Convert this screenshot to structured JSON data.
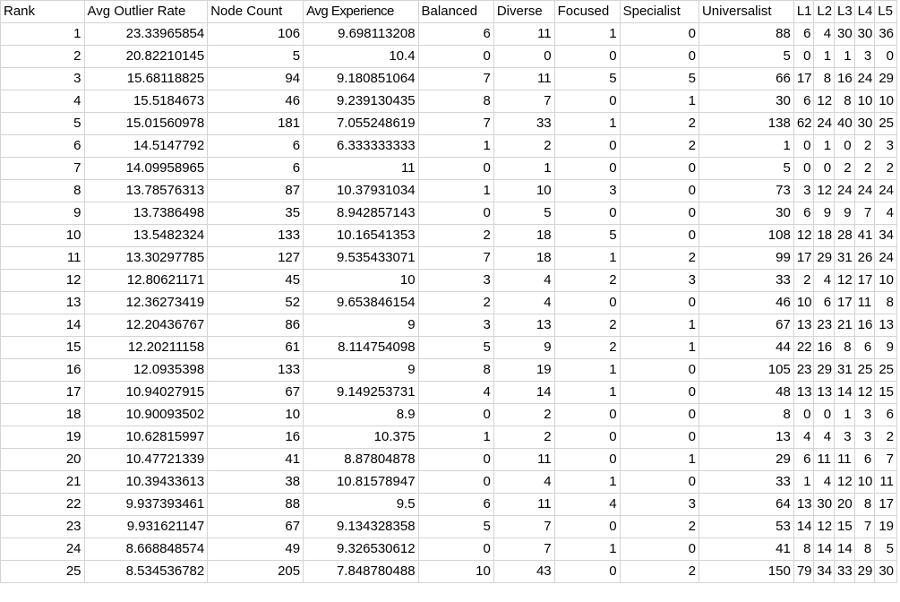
{
  "sheet": {
    "headers": [
      "Rank",
      "Avg Outlier Rate",
      "Node Count",
      "Avg Experience",
      "Balanced",
      "Diverse",
      "Focused",
      "Specialist",
      "Universalist",
      "L1",
      "L2",
      "L3",
      "L4",
      "L5"
    ],
    "rows": [
      [
        "1",
        "23.33965854",
        "106",
        "9.698113208",
        "6",
        "11",
        "1",
        "0",
        "88",
        "6",
        "4",
        "30",
        "30",
        "36"
      ],
      [
        "2",
        "20.82210145",
        "5",
        "10.4",
        "0",
        "0",
        "0",
        "0",
        "5",
        "0",
        "1",
        "1",
        "3",
        "0"
      ],
      [
        "3",
        "15.68118825",
        "94",
        "9.180851064",
        "7",
        "11",
        "5",
        "5",
        "66",
        "17",
        "8",
        "16",
        "24",
        "29"
      ],
      [
        "4",
        "15.5184673",
        "46",
        "9.239130435",
        "8",
        "7",
        "0",
        "1",
        "30",
        "6",
        "12",
        "8",
        "10",
        "10"
      ],
      [
        "5",
        "15.01560978",
        "181",
        "7.055248619",
        "7",
        "33",
        "1",
        "2",
        "138",
        "62",
        "24",
        "40",
        "30",
        "25"
      ],
      [
        "6",
        "14.5147792",
        "6",
        "6.333333333",
        "1",
        "2",
        "0",
        "2",
        "1",
        "0",
        "1",
        "0",
        "2",
        "3"
      ],
      [
        "7",
        "14.09958965",
        "6",
        "11",
        "0",
        "1",
        "0",
        "0",
        "5",
        "0",
        "0",
        "2",
        "2",
        "2"
      ],
      [
        "8",
        "13.78576313",
        "87",
        "10.37931034",
        "1",
        "10",
        "3",
        "0",
        "73",
        "3",
        "12",
        "24",
        "24",
        "24"
      ],
      [
        "9",
        "13.7386498",
        "35",
        "8.942857143",
        "0",
        "5",
        "0",
        "0",
        "30",
        "6",
        "9",
        "9",
        "7",
        "4"
      ],
      [
        "10",
        "13.5482324",
        "133",
        "10.16541353",
        "2",
        "18",
        "5",
        "0",
        "108",
        "12",
        "18",
        "28",
        "41",
        "34"
      ],
      [
        "11",
        "13.30297785",
        "127",
        "9.535433071",
        "7",
        "18",
        "1",
        "2",
        "99",
        "17",
        "29",
        "31",
        "26",
        "24"
      ],
      [
        "12",
        "12.80621171",
        "45",
        "10",
        "3",
        "4",
        "2",
        "3",
        "33",
        "2",
        "4",
        "12",
        "17",
        "10"
      ],
      [
        "13",
        "12.36273419",
        "52",
        "9.653846154",
        "2",
        "4",
        "0",
        "0",
        "46",
        "10",
        "6",
        "17",
        "11",
        "8"
      ],
      [
        "14",
        "12.20436767",
        "86",
        "9",
        "3",
        "13",
        "2",
        "1",
        "67",
        "13",
        "23",
        "21",
        "16",
        "13"
      ],
      [
        "15",
        "12.20211158",
        "61",
        "8.114754098",
        "5",
        "9",
        "2",
        "1",
        "44",
        "22",
        "16",
        "8",
        "6",
        "9"
      ],
      [
        "16",
        "12.0935398",
        "133",
        "9",
        "8",
        "19",
        "1",
        "0",
        "105",
        "23",
        "29",
        "31",
        "25",
        "25"
      ],
      [
        "17",
        "10.94027915",
        "67",
        "9.149253731",
        "4",
        "14",
        "1",
        "0",
        "48",
        "13",
        "13",
        "14",
        "12",
        "15"
      ],
      [
        "18",
        "10.90093502",
        "10",
        "8.9",
        "0",
        "2",
        "0",
        "0",
        "8",
        "0",
        "0",
        "1",
        "3",
        "6"
      ],
      [
        "19",
        "10.62815997",
        "16",
        "10.375",
        "1",
        "2",
        "0",
        "0",
        "13",
        "4",
        "4",
        "3",
        "3",
        "2"
      ],
      [
        "20",
        "10.47721339",
        "41",
        "8.87804878",
        "0",
        "11",
        "0",
        "1",
        "29",
        "6",
        "11",
        "11",
        "6",
        "7"
      ],
      [
        "21",
        "10.39433613",
        "38",
        "10.81578947",
        "0",
        "4",
        "1",
        "0",
        "33",
        "1",
        "4",
        "12",
        "10",
        "11"
      ],
      [
        "22",
        "9.937393461",
        "88",
        "9.5",
        "6",
        "11",
        "4",
        "3",
        "64",
        "13",
        "30",
        "20",
        "8",
        "17"
      ],
      [
        "23",
        "9.931621147",
        "67",
        "9.134328358",
        "5",
        "7",
        "0",
        "2",
        "53",
        "14",
        "12",
        "15",
        "7",
        "19"
      ],
      [
        "24",
        "8.668848574",
        "49",
        "9.326530612",
        "0",
        "7",
        "1",
        "0",
        "41",
        "8",
        "14",
        "14",
        "8",
        "5"
      ],
      [
        "25",
        "8.534536782",
        "205",
        "7.848780488",
        "10",
        "43",
        "0",
        "2",
        "150",
        "79",
        "34",
        "33",
        "29",
        "30"
      ]
    ]
  }
}
